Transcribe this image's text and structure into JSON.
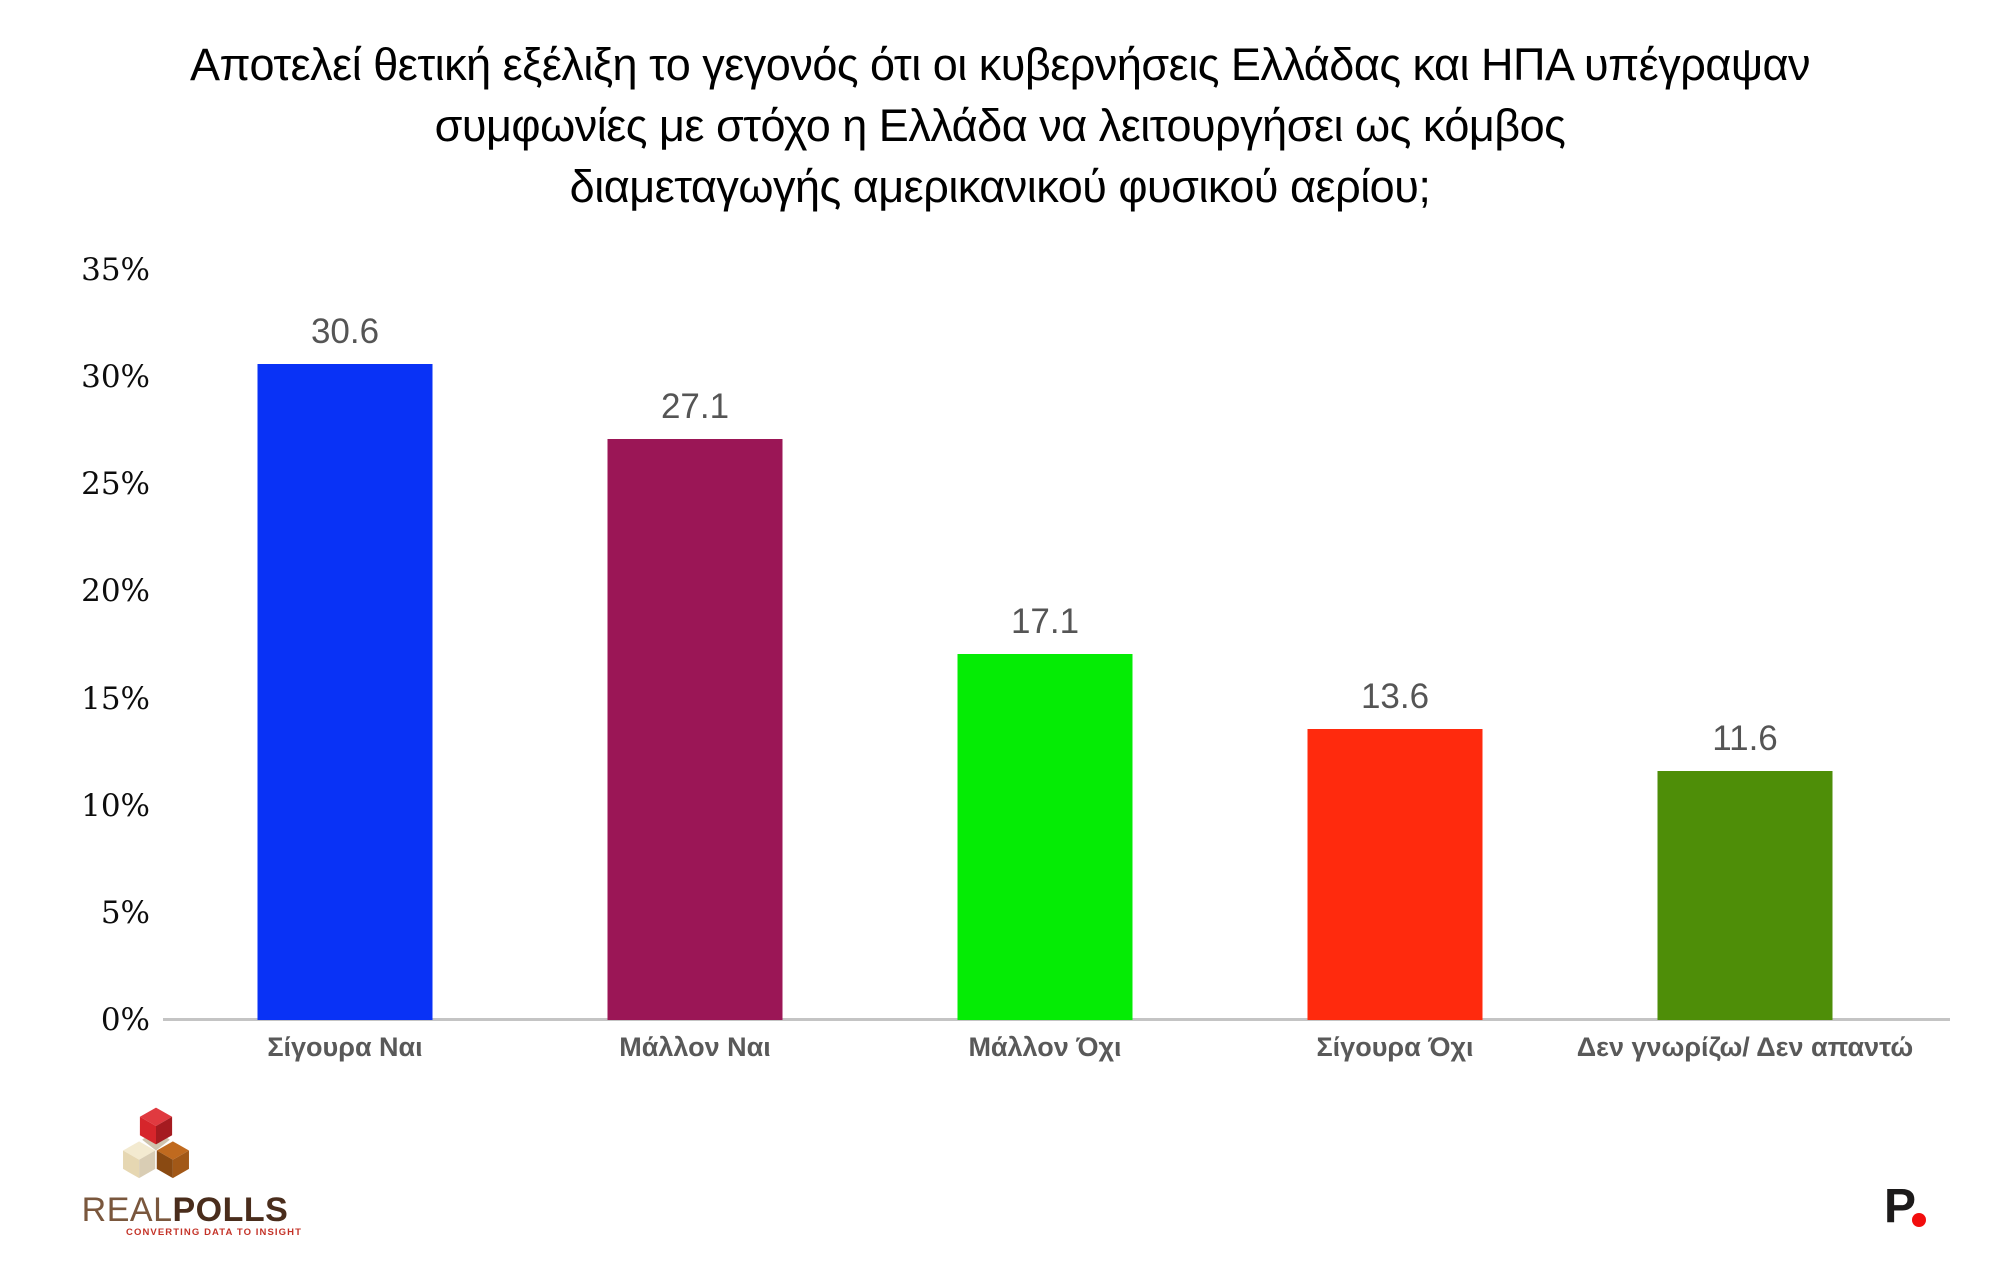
{
  "title": {
    "line1": "Αποτελεί θετική εξέλιξη το γεγονός ότι οι κυβερνήσεις Ελλάδας και ΗΠΑ υπέγραψαν",
    "line2": "συμφωνίες με στόχο η Ελλάδα να λειτουργήσει ως κόμβος",
    "line3": "διαμεταγωγής αμερικανικού φυσικού αερίου;"
  },
  "chart_data": {
    "type": "bar",
    "title": "Αποτελεί θετική εξέλιξη το γεγονός ότι οι κυβερνήσεις Ελλάδας και ΗΠΑ υπέγραψαν συμφωνίες με στόχο η Ελλάδα να λειτουργήσει ως κόμβος διαμεταγωγής αμερικανικού φυσικού αερίου;",
    "categories": [
      "Σίγουρα Ναι",
      "Μάλλον Ναι",
      "Μάλλον Όχι",
      "Σίγουρα Όχι",
      "Δεν γνωρίζω/ Δεν απαντώ"
    ],
    "values": [
      30.6,
      27.1,
      17.1,
      13.6,
      11.6
    ],
    "value_labels": [
      "30.6",
      "27.1",
      "17.1",
      "13.6",
      "11.6"
    ],
    "bar_colors": [
      "#0932f6",
      "#9b1656",
      "#05ec05",
      "#ff2a0d",
      "#4e8e08"
    ],
    "xlabel": "",
    "ylabel": "",
    "ylim": [
      0,
      35
    ],
    "yticks": [
      "35%",
      "30%",
      "25%",
      "20%",
      "15%",
      "10%",
      "5%",
      "0%"
    ],
    "ytick_values": [
      35,
      30,
      25,
      20,
      15,
      10,
      5,
      0
    ],
    "grid": false,
    "legend": null,
    "value_label_color": "#555555",
    "category_label_color": "#595959",
    "axis_line_color": "#c4c4c4"
  },
  "footer": {
    "realpolls": {
      "brand_light": "REAL",
      "brand_bold": "POLLS",
      "tagline": "CONVERTING DATA TO INSIGHT"
    },
    "prorata": {
      "letter": "P"
    }
  }
}
